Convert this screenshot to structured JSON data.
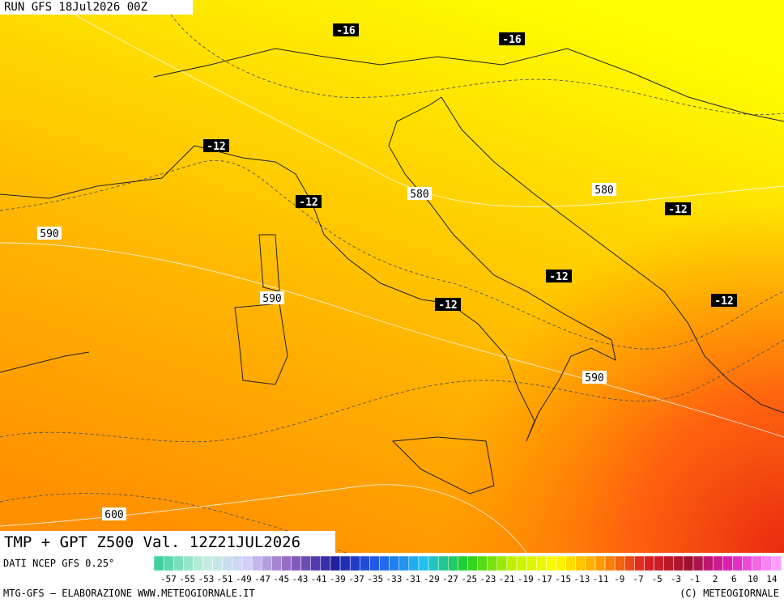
{
  "header": {
    "run": "RUN GFS 18Jul2026 00Z"
  },
  "map": {
    "temp_labels": [
      "-16",
      "-16",
      "-12",
      "-12",
      "-12",
      "-12",
      "-12",
      "-12"
    ],
    "height_labels": [
      "580",
      "580",
      "590",
      "590",
      "590",
      "600"
    ]
  },
  "footer": {
    "title": "TMP + GPT Z500 Val. 12Z21JUL2026",
    "source": "DATI NCEP GFS 0.25°",
    "credit": "MTG-GFS — ELABORAZIONE WWW.METEOGIORNALE.IT",
    "copyright": "(C) METEOGIORNALE"
  },
  "colorbar": {
    "labels": [
      "-57",
      "-55",
      "-53",
      "-51",
      "-49",
      "-47",
      "-45",
      "-43",
      "-41",
      "-39",
      "-37",
      "-35",
      "-33",
      "-31",
      "-29",
      "-27",
      "-25",
      "-23",
      "-21",
      "-19",
      "-17",
      "-15",
      "-13",
      "-11",
      "-9",
      "-7",
      "-5",
      "-3",
      "-1",
      "2",
      "6",
      "10",
      "14"
    ]
  }
}
